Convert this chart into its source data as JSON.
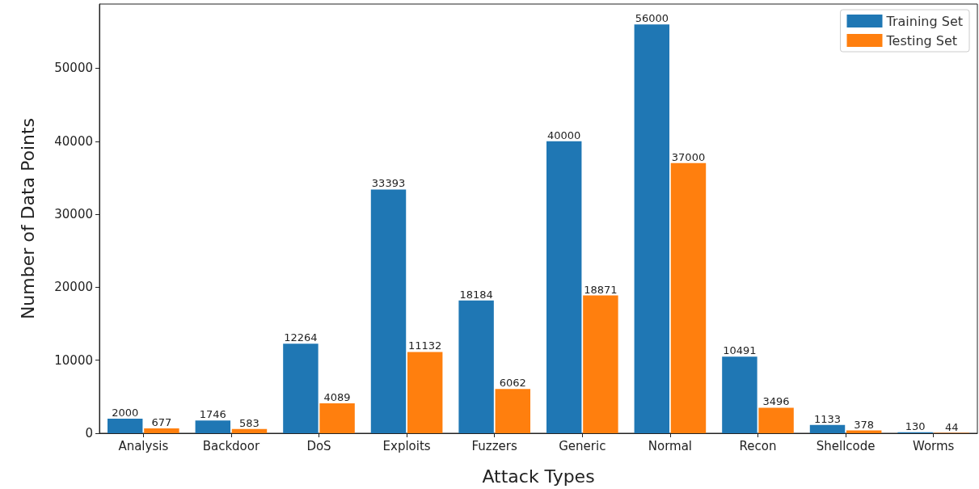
{
  "chart_data": {
    "type": "bar",
    "xlabel": "Attack Types",
    "ylabel": "Number of Data Points",
    "categories": [
      "Analysis",
      "Backdoor",
      "DoS",
      "Exploits",
      "Fuzzers",
      "Generic",
      "Normal",
      "Recon",
      "Shellcode",
      "Worms"
    ],
    "series": [
      {
        "name": "Training Set",
        "color": "#1f77b4",
        "values": [
          2000,
          1746,
          12264,
          33393,
          18184,
          40000,
          56000,
          10491,
          1133,
          130
        ]
      },
      {
        "name": "Testing Set",
        "color": "#ff7f0e",
        "values": [
          677,
          583,
          4089,
          11132,
          6062,
          18871,
          37000,
          3496,
          378,
          44
        ]
      }
    ],
    "ylim": [
      0,
      58800
    ],
    "yticks": [
      0,
      10000,
      20000,
      30000,
      40000,
      50000
    ],
    "data_labels": true,
    "legend": "top right",
    "grid": false
  }
}
